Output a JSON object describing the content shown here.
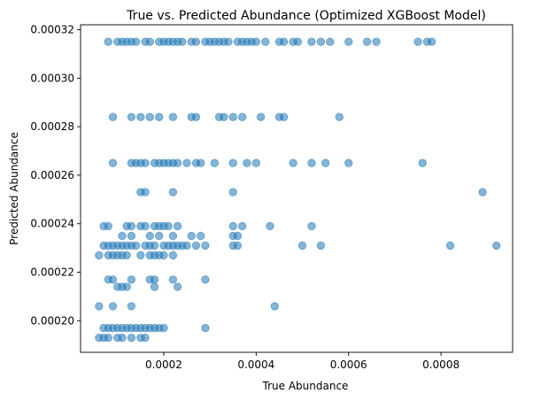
{
  "chart_data": {
    "type": "scatter",
    "title": "True vs. Predicted Abundance (Optimized XGBoost Model)",
    "xlabel": "True Abundance",
    "ylabel": "Predicted Abundance",
    "xlim": [
      2e-05,
      0.000955
    ],
    "ylim": [
      0.000187,
      0.000322
    ],
    "xticks": [
      {
        "value": 0.0002,
        "label": "0.0002"
      },
      {
        "value": 0.0004,
        "label": "0.0004"
      },
      {
        "value": 0.0006,
        "label": "0.0006"
      },
      {
        "value": 0.0008,
        "label": "0.0008"
      }
    ],
    "yticks": [
      {
        "value": 0.0002,
        "label": "0.00020"
      },
      {
        "value": 0.00022,
        "label": "0.00022"
      },
      {
        "value": 0.00024,
        "label": "0.00024"
      },
      {
        "value": 0.00026,
        "label": "0.00026"
      },
      {
        "value": 0.00028,
        "label": "0.00028"
      },
      {
        "value": 0.0003,
        "label": "0.00030"
      },
      {
        "value": 0.00032,
        "label": "0.00032"
      }
    ],
    "grid": false,
    "legend": "none",
    "marker_color": "#1f77b4",
    "marker_alpha": 0.55,
    "points": [
      {
        "y": 0.000315,
        "x": [
          8e-05,
          0.0001,
          0.00011,
          0.00012,
          0.00013,
          0.00014,
          0.00016,
          0.00017,
          0.00019,
          0.0002,
          0.00021,
          0.00022,
          0.00023,
          0.00024,
          0.00026,
          0.00027,
          0.00029,
          0.0003,
          0.00031,
          0.00032,
          0.00033,
          0.00034,
          0.00036,
          0.00037,
          0.00038,
          0.00039,
          0.0004,
          0.00042,
          0.00045,
          0.00046,
          0.00048,
          0.00049,
          0.00052,
          0.00054,
          0.00056,
          0.0006,
          0.00064,
          0.00066,
          0.00075,
          0.00077,
          0.00078
        ]
      },
      {
        "y": 0.000284,
        "x": [
          9e-05,
          0.00013,
          0.00015,
          0.00017,
          0.00019,
          0.00022,
          0.00026,
          0.00027,
          0.00032,
          0.00033,
          0.00035,
          0.00037,
          0.00041,
          0.00045,
          0.00046,
          0.00058
        ]
      },
      {
        "y": 0.000265,
        "x": [
          9e-05,
          0.00013,
          0.00014,
          0.00015,
          0.00016,
          0.00018,
          0.00019,
          0.0002,
          0.00021,
          0.00022,
          0.00023,
          0.00025,
          0.00027,
          0.00028,
          0.00031,
          0.00035,
          0.00038,
          0.0004,
          0.00048,
          0.00052,
          0.00055,
          0.0006,
          0.00076
        ]
      },
      {
        "y": 0.000253,
        "x": [
          0.00015,
          0.00016,
          0.00022,
          0.00035,
          0.00089
        ]
      },
      {
        "y": 0.000239,
        "x": [
          7e-05,
          8e-05,
          0.00012,
          0.00013,
          0.00015,
          0.00016,
          0.00018,
          0.00019,
          0.0002,
          0.00021,
          0.00023,
          0.00035,
          0.00037,
          0.00043,
          0.00052
        ]
      },
      {
        "y": 0.000235,
        "x": [
          0.00011,
          0.00013,
          0.00017,
          0.00019,
          0.00022,
          0.00026,
          0.00028,
          0.00035,
          0.00036
        ]
      },
      {
        "y": 0.000231,
        "x": [
          7e-05,
          8e-05,
          9e-05,
          0.0001,
          0.00011,
          0.00012,
          0.00013,
          0.00014,
          0.00016,
          0.00017,
          0.00018,
          0.0002,
          0.00021,
          0.00022,
          0.00023,
          0.00024,
          0.00025,
          0.00027,
          0.00029,
          0.00035,
          0.00036,
          0.0005,
          0.00054,
          0.00082,
          0.00092
        ]
      },
      {
        "y": 0.000227,
        "x": [
          6e-05,
          8e-05,
          9e-05,
          0.0001,
          0.00011,
          0.00012,
          0.00015,
          0.00017,
          0.00018,
          0.00019,
          0.0002,
          0.00022
        ]
      },
      {
        "y": 0.000217,
        "x": [
          8e-05,
          9e-05,
          0.00013,
          0.00017,
          0.00018,
          0.00022,
          0.00029
        ]
      },
      {
        "y": 0.000214,
        "x": [
          0.0001,
          0.00011,
          0.00012,
          0.00018,
          0.00023
        ]
      },
      {
        "y": 0.000206,
        "x": [
          6e-05,
          9e-05,
          0.00013,
          0.00044
        ]
      },
      {
        "y": 0.000197,
        "x": [
          7e-05,
          8e-05,
          9e-05,
          0.0001,
          0.00011,
          0.00012,
          0.00013,
          0.00014,
          0.00015,
          0.00016,
          0.00017,
          0.00018,
          0.00019,
          0.0002,
          0.00029
        ]
      },
      {
        "y": 0.000193,
        "x": [
          6e-05,
          7e-05,
          8e-05,
          0.0001,
          0.00011,
          0.00013,
          0.00015,
          0.00016
        ]
      }
    ]
  }
}
